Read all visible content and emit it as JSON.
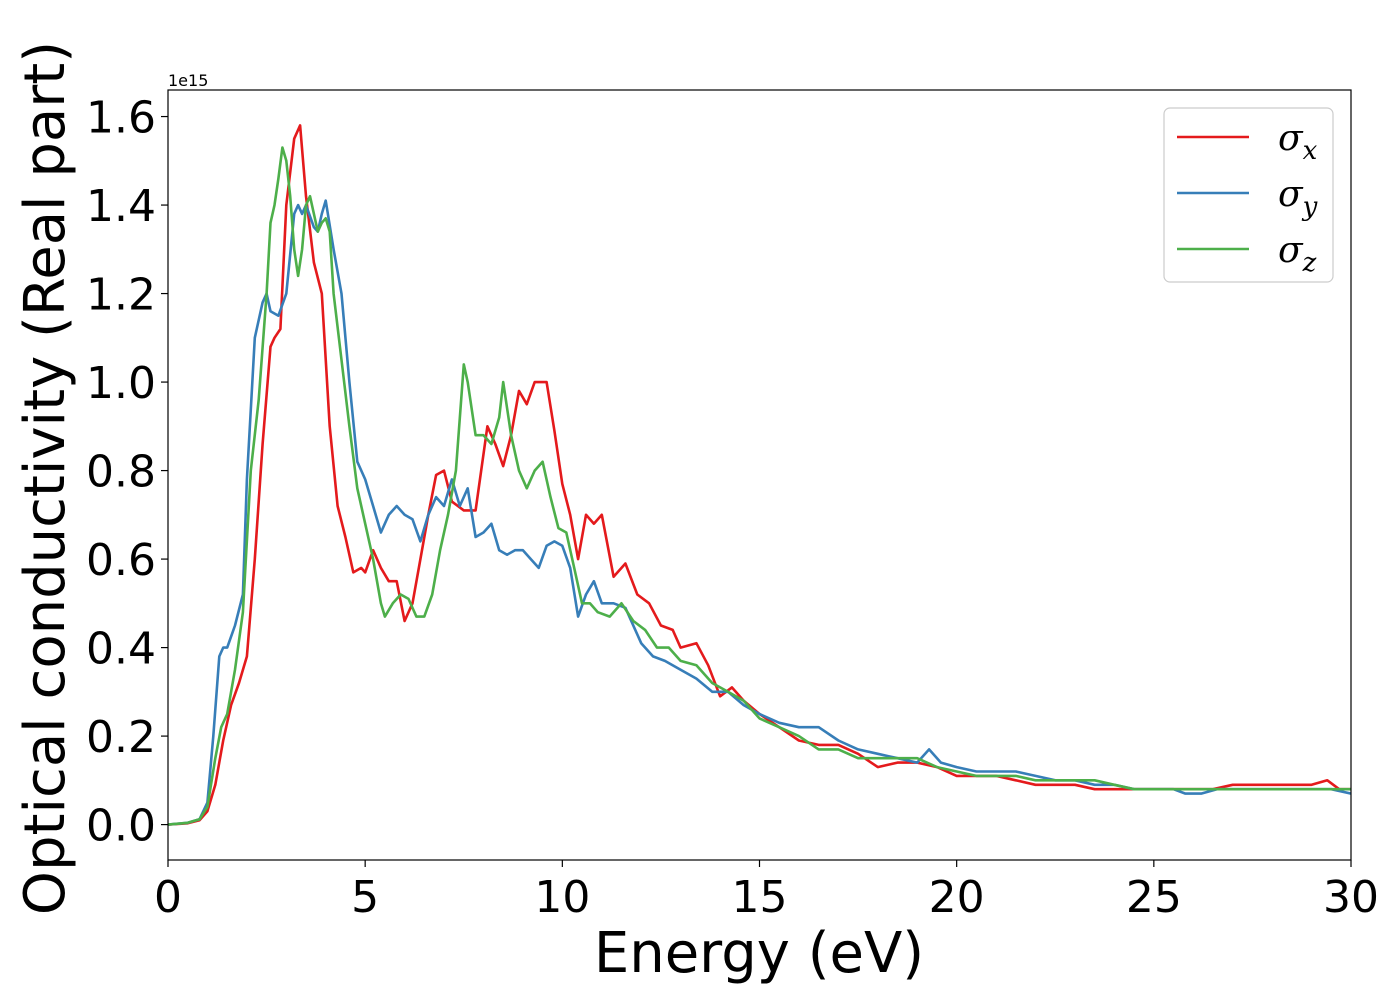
{
  "chart_data": {
    "type": "line",
    "xlabel": "Energy (eV)",
    "ylabel": "Optical conductivity (Real part)",
    "offset_text": "1e15",
    "xlim": [
      0,
      30
    ],
    "ylim": [
      -0.08,
      1.66
    ],
    "x_ticks": [
      0,
      5,
      10,
      15,
      20,
      25,
      30
    ],
    "x_tick_labels": [
      "0",
      "5",
      "10",
      "15",
      "20",
      "25",
      "30"
    ],
    "y_ticks": [
      0.0,
      0.2,
      0.4,
      0.6,
      0.8,
      1.0,
      1.2,
      1.4,
      1.6
    ],
    "y_tick_labels": [
      "0.0",
      "0.2",
      "0.4",
      "0.6",
      "0.8",
      "1.0",
      "1.2",
      "1.4",
      "1.6"
    ],
    "grid": false,
    "legend_position": "top-right",
    "series": [
      {
        "name": "σx",
        "legend_base": "σ",
        "legend_sub": "x",
        "color": "#e41a1c",
        "points": [
          [
            0,
            0
          ],
          [
            0.5,
            0.003
          ],
          [
            0.8,
            0.01
          ],
          [
            1.0,
            0.03
          ],
          [
            1.2,
            0.09
          ],
          [
            1.4,
            0.19
          ],
          [
            1.6,
            0.27
          ],
          [
            1.8,
            0.32
          ],
          [
            2.0,
            0.38
          ],
          [
            2.2,
            0.6
          ],
          [
            2.4,
            0.86
          ],
          [
            2.6,
            1.08
          ],
          [
            2.7,
            1.1
          ],
          [
            2.85,
            1.12
          ],
          [
            3.0,
            1.4
          ],
          [
            3.2,
            1.55
          ],
          [
            3.35,
            1.58
          ],
          [
            3.5,
            1.42
          ],
          [
            3.7,
            1.27
          ],
          [
            3.9,
            1.2
          ],
          [
            4.1,
            0.9
          ],
          [
            4.3,
            0.72
          ],
          [
            4.5,
            0.65
          ],
          [
            4.7,
            0.57
          ],
          [
            4.9,
            0.58
          ],
          [
            5.0,
            0.57
          ],
          [
            5.2,
            0.62
          ],
          [
            5.4,
            0.58
          ],
          [
            5.6,
            0.55
          ],
          [
            5.8,
            0.55
          ],
          [
            6.0,
            0.46
          ],
          [
            6.2,
            0.5
          ],
          [
            6.4,
            0.6
          ],
          [
            6.6,
            0.7
          ],
          [
            6.8,
            0.79
          ],
          [
            7.0,
            0.8
          ],
          [
            7.2,
            0.73
          ],
          [
            7.5,
            0.71
          ],
          [
            7.8,
            0.71
          ],
          [
            8.1,
            0.9
          ],
          [
            8.3,
            0.86
          ],
          [
            8.5,
            0.81
          ],
          [
            8.7,
            0.88
          ],
          [
            8.9,
            0.98
          ],
          [
            9.1,
            0.95
          ],
          [
            9.3,
            1.0
          ],
          [
            9.6,
            1.0
          ],
          [
            9.8,
            0.89
          ],
          [
            10.0,
            0.77
          ],
          [
            10.2,
            0.7
          ],
          [
            10.4,
            0.6
          ],
          [
            10.6,
            0.7
          ],
          [
            10.8,
            0.68
          ],
          [
            11.0,
            0.7
          ],
          [
            11.3,
            0.56
          ],
          [
            11.6,
            0.59
          ],
          [
            11.9,
            0.52
          ],
          [
            12.2,
            0.5
          ],
          [
            12.5,
            0.45
          ],
          [
            12.8,
            0.44
          ],
          [
            13.0,
            0.4
          ],
          [
            13.4,
            0.41
          ],
          [
            13.7,
            0.36
          ],
          [
            14.0,
            0.29
          ],
          [
            14.3,
            0.31
          ],
          [
            14.6,
            0.28
          ],
          [
            15.0,
            0.25
          ],
          [
            15.5,
            0.22
          ],
          [
            16.0,
            0.19
          ],
          [
            16.5,
            0.18
          ],
          [
            17.0,
            0.18
          ],
          [
            17.5,
            0.16
          ],
          [
            18.0,
            0.13
          ],
          [
            18.5,
            0.14
          ],
          [
            19.0,
            0.14
          ],
          [
            19.5,
            0.13
          ],
          [
            20.0,
            0.11
          ],
          [
            20.5,
            0.11
          ],
          [
            21.0,
            0.11
          ],
          [
            21.5,
            0.1
          ],
          [
            22.0,
            0.09
          ],
          [
            22.5,
            0.09
          ],
          [
            23.0,
            0.09
          ],
          [
            23.5,
            0.08
          ],
          [
            24.0,
            0.08
          ],
          [
            24.5,
            0.08
          ],
          [
            25.0,
            0.08
          ],
          [
            25.5,
            0.08
          ],
          [
            26.0,
            0.08
          ],
          [
            26.5,
            0.08
          ],
          [
            27.0,
            0.09
          ],
          [
            27.5,
            0.09
          ],
          [
            28.0,
            0.09
          ],
          [
            28.5,
            0.09
          ],
          [
            29.0,
            0.09
          ],
          [
            29.4,
            0.1
          ],
          [
            29.7,
            0.08
          ],
          [
            30.0,
            0.08
          ]
        ]
      },
      {
        "name": "σy",
        "legend_base": "σ",
        "legend_sub": "y",
        "color": "#377eb8",
        "points": [
          [
            0,
            0
          ],
          [
            0.5,
            0.004
          ],
          [
            0.8,
            0.012
          ],
          [
            1.0,
            0.05
          ],
          [
            1.15,
            0.2
          ],
          [
            1.3,
            0.38
          ],
          [
            1.4,
            0.4
          ],
          [
            1.5,
            0.4
          ],
          [
            1.7,
            0.45
          ],
          [
            1.9,
            0.52
          ],
          [
            2.0,
            0.78
          ],
          [
            2.2,
            1.1
          ],
          [
            2.4,
            1.18
          ],
          [
            2.5,
            1.2
          ],
          [
            2.6,
            1.16
          ],
          [
            2.8,
            1.15
          ],
          [
            3.0,
            1.2
          ],
          [
            3.2,
            1.38
          ],
          [
            3.3,
            1.4
          ],
          [
            3.4,
            1.38
          ],
          [
            3.5,
            1.4
          ],
          [
            3.7,
            1.35
          ],
          [
            3.8,
            1.34
          ],
          [
            3.9,
            1.38
          ],
          [
            4.0,
            1.41
          ],
          [
            4.2,
            1.3
          ],
          [
            4.4,
            1.2
          ],
          [
            4.6,
            1.0
          ],
          [
            4.8,
            0.82
          ],
          [
            5.0,
            0.78
          ],
          [
            5.2,
            0.72
          ],
          [
            5.4,
            0.66
          ],
          [
            5.6,
            0.7
          ],
          [
            5.8,
            0.72
          ],
          [
            6.0,
            0.7
          ],
          [
            6.2,
            0.69
          ],
          [
            6.4,
            0.64
          ],
          [
            6.6,
            0.7
          ],
          [
            6.8,
            0.74
          ],
          [
            7.0,
            0.72
          ],
          [
            7.2,
            0.78
          ],
          [
            7.4,
            0.72
          ],
          [
            7.6,
            0.76
          ],
          [
            7.8,
            0.65
          ],
          [
            8.0,
            0.66
          ],
          [
            8.2,
            0.68
          ],
          [
            8.4,
            0.62
          ],
          [
            8.6,
            0.61
          ],
          [
            8.8,
            0.62
          ],
          [
            9.0,
            0.62
          ],
          [
            9.2,
            0.6
          ],
          [
            9.4,
            0.58
          ],
          [
            9.6,
            0.63
          ],
          [
            9.8,
            0.64
          ],
          [
            10.0,
            0.63
          ],
          [
            10.2,
            0.58
          ],
          [
            10.4,
            0.47
          ],
          [
            10.6,
            0.52
          ],
          [
            10.8,
            0.55
          ],
          [
            11.0,
            0.5
          ],
          [
            11.3,
            0.5
          ],
          [
            11.6,
            0.49
          ],
          [
            12.0,
            0.41
          ],
          [
            12.3,
            0.38
          ],
          [
            12.6,
            0.37
          ],
          [
            13.0,
            0.35
          ],
          [
            13.4,
            0.33
          ],
          [
            13.8,
            0.3
          ],
          [
            14.2,
            0.3
          ],
          [
            14.6,
            0.27
          ],
          [
            15.0,
            0.25
          ],
          [
            15.5,
            0.23
          ],
          [
            16.0,
            0.22
          ],
          [
            16.5,
            0.22
          ],
          [
            17.0,
            0.19
          ],
          [
            17.5,
            0.17
          ],
          [
            18.0,
            0.16
          ],
          [
            18.5,
            0.15
          ],
          [
            19.0,
            0.14
          ],
          [
            19.3,
            0.17
          ],
          [
            19.6,
            0.14
          ],
          [
            20.0,
            0.13
          ],
          [
            20.5,
            0.12
          ],
          [
            21.0,
            0.12
          ],
          [
            21.5,
            0.12
          ],
          [
            22.0,
            0.11
          ],
          [
            22.5,
            0.1
          ],
          [
            23.0,
            0.1
          ],
          [
            23.5,
            0.09
          ],
          [
            24.0,
            0.09
          ],
          [
            24.5,
            0.08
          ],
          [
            25.0,
            0.08
          ],
          [
            25.5,
            0.08
          ],
          [
            25.8,
            0.07
          ],
          [
            26.2,
            0.07
          ],
          [
            26.6,
            0.08
          ],
          [
            27.0,
            0.08
          ],
          [
            27.5,
            0.08
          ],
          [
            28.0,
            0.08
          ],
          [
            28.5,
            0.08
          ],
          [
            29.0,
            0.08
          ],
          [
            29.5,
            0.08
          ],
          [
            30.0,
            0.07
          ]
        ]
      },
      {
        "name": "σz",
        "legend_base": "σ",
        "legend_sub": "z",
        "color": "#4daf4a",
        "points": [
          [
            0,
            0
          ],
          [
            0.5,
            0.004
          ],
          [
            0.8,
            0.012
          ],
          [
            1.0,
            0.04
          ],
          [
            1.2,
            0.15
          ],
          [
            1.35,
            0.22
          ],
          [
            1.5,
            0.25
          ],
          [
            1.7,
            0.35
          ],
          [
            1.9,
            0.48
          ],
          [
            2.1,
            0.8
          ],
          [
            2.3,
            0.96
          ],
          [
            2.5,
            1.2
          ],
          [
            2.6,
            1.36
          ],
          [
            2.7,
            1.4
          ],
          [
            2.8,
            1.46
          ],
          [
            2.9,
            1.53
          ],
          [
            3.0,
            1.5
          ],
          [
            3.1,
            1.42
          ],
          [
            3.2,
            1.3
          ],
          [
            3.3,
            1.24
          ],
          [
            3.4,
            1.3
          ],
          [
            3.5,
            1.4
          ],
          [
            3.6,
            1.42
          ],
          [
            3.7,
            1.38
          ],
          [
            3.8,
            1.34
          ],
          [
            3.9,
            1.36
          ],
          [
            4.0,
            1.37
          ],
          [
            4.1,
            1.34
          ],
          [
            4.2,
            1.2
          ],
          [
            4.4,
            1.05
          ],
          [
            4.6,
            0.9
          ],
          [
            4.8,
            0.76
          ],
          [
            5.0,
            0.68
          ],
          [
            5.2,
            0.6
          ],
          [
            5.4,
            0.5
          ],
          [
            5.5,
            0.47
          ],
          [
            5.7,
            0.5
          ],
          [
            5.9,
            0.52
          ],
          [
            6.1,
            0.51
          ],
          [
            6.3,
            0.47
          ],
          [
            6.5,
            0.47
          ],
          [
            6.7,
            0.52
          ],
          [
            6.9,
            0.62
          ],
          [
            7.1,
            0.7
          ],
          [
            7.3,
            0.8
          ],
          [
            7.5,
            1.04
          ],
          [
            7.6,
            1.0
          ],
          [
            7.8,
            0.88
          ],
          [
            8.0,
            0.88
          ],
          [
            8.2,
            0.86
          ],
          [
            8.4,
            0.92
          ],
          [
            8.5,
            1.0
          ],
          [
            8.7,
            0.88
          ],
          [
            8.9,
            0.8
          ],
          [
            9.1,
            0.76
          ],
          [
            9.3,
            0.8
          ],
          [
            9.5,
            0.82
          ],
          [
            9.7,
            0.74
          ],
          [
            9.9,
            0.67
          ],
          [
            10.1,
            0.66
          ],
          [
            10.3,
            0.58
          ],
          [
            10.5,
            0.5
          ],
          [
            10.7,
            0.5
          ],
          [
            10.9,
            0.48
          ],
          [
            11.2,
            0.47
          ],
          [
            11.5,
            0.5
          ],
          [
            11.8,
            0.46
          ],
          [
            12.1,
            0.44
          ],
          [
            12.4,
            0.4
          ],
          [
            12.7,
            0.4
          ],
          [
            13.0,
            0.37
          ],
          [
            13.4,
            0.36
          ],
          [
            13.8,
            0.32
          ],
          [
            14.2,
            0.3
          ],
          [
            14.6,
            0.28
          ],
          [
            15.0,
            0.24
          ],
          [
            15.5,
            0.22
          ],
          [
            16.0,
            0.2
          ],
          [
            16.5,
            0.17
          ],
          [
            17.0,
            0.17
          ],
          [
            17.5,
            0.15
          ],
          [
            18.0,
            0.15
          ],
          [
            18.5,
            0.15
          ],
          [
            19.0,
            0.15
          ],
          [
            19.5,
            0.13
          ],
          [
            20.0,
            0.12
          ],
          [
            20.5,
            0.11
          ],
          [
            21.0,
            0.11
          ],
          [
            21.5,
            0.11
          ],
          [
            22.0,
            0.1
          ],
          [
            22.5,
            0.1
          ],
          [
            23.0,
            0.1
          ],
          [
            23.5,
            0.1
          ],
          [
            24.0,
            0.09
          ],
          [
            24.5,
            0.08
          ],
          [
            25.0,
            0.08
          ],
          [
            25.5,
            0.08
          ],
          [
            26.0,
            0.08
          ],
          [
            26.5,
            0.08
          ],
          [
            27.0,
            0.08
          ],
          [
            27.5,
            0.08
          ],
          [
            28.0,
            0.08
          ],
          [
            28.5,
            0.08
          ],
          [
            29.0,
            0.08
          ],
          [
            29.5,
            0.08
          ],
          [
            30.0,
            0.08
          ]
        ]
      }
    ]
  }
}
